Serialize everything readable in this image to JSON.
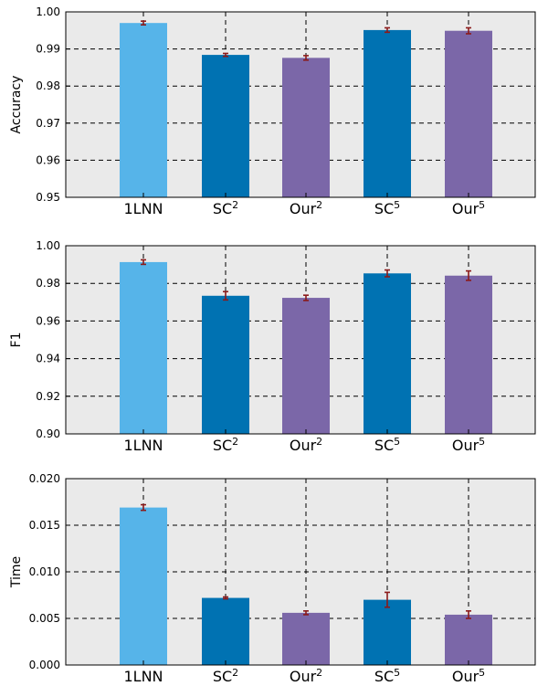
{
  "chart_data": [
    {
      "type": "bar",
      "ylabel": "Accuracy",
      "ylim": [
        0.95,
        1.0
      ],
      "yticks": [
        "0.95",
        "0.96",
        "0.97",
        "0.98",
        "0.99",
        "1.00"
      ],
      "grid": true,
      "categories": [
        {
          "base": "1LNN",
          "sup": ""
        },
        {
          "base": "SC",
          "sup": "2"
        },
        {
          "base": "Our",
          "sup": "2"
        },
        {
          "base": "SC",
          "sup": "5"
        },
        {
          "base": "Our",
          "sup": "5"
        }
      ],
      "values": [
        0.997,
        0.9884,
        0.9876,
        0.9951,
        0.9949
      ],
      "errors": [
        0.0005,
        0.0004,
        0.0006,
        0.0006,
        0.0008
      ],
      "colors": [
        "#56b4e9",
        "#0072b2",
        "#7b67a8",
        "#0072b2",
        "#7b67a8"
      ]
    },
    {
      "type": "bar",
      "ylabel": "F1",
      "ylim": [
        0.9,
        1.0
      ],
      "yticks": [
        "0.90",
        "0.92",
        "0.94",
        "0.96",
        "0.98",
        "1.00"
      ],
      "grid": true,
      "categories": [
        {
          "base": "1LNN",
          "sup": ""
        },
        {
          "base": "SC",
          "sup": "2"
        },
        {
          "base": "Our",
          "sup": "2"
        },
        {
          "base": "SC",
          "sup": "5"
        },
        {
          "base": "Our",
          "sup": "5"
        }
      ],
      "values": [
        0.9913,
        0.9734,
        0.9723,
        0.9853,
        0.9841
      ],
      "errors": [
        0.0012,
        0.0022,
        0.0014,
        0.0018,
        0.0025
      ],
      "colors": [
        "#56b4e9",
        "#0072b2",
        "#7b67a8",
        "#0072b2",
        "#7b67a8"
      ]
    },
    {
      "type": "bar",
      "ylabel": "Time",
      "ylim": [
        0.0,
        0.02
      ],
      "yticks": [
        "0.000",
        "0.005",
        "0.010",
        "0.015",
        "0.020"
      ],
      "grid": true,
      "categories": [
        {
          "base": "1LNN",
          "sup": ""
        },
        {
          "base": "SC",
          "sup": "2"
        },
        {
          "base": "Our",
          "sup": "2"
        },
        {
          "base": "SC",
          "sup": "5"
        },
        {
          "base": "Our",
          "sup": "5"
        }
      ],
      "values": [
        0.0169,
        0.0072,
        0.0056,
        0.007,
        0.0054
      ],
      "errors": [
        0.0003,
        0.0001,
        0.0002,
        0.0008,
        0.0004
      ],
      "colors": [
        "#56b4e9",
        "#0072b2",
        "#7b67a8",
        "#0072b2",
        "#7b67a8"
      ]
    }
  ]
}
